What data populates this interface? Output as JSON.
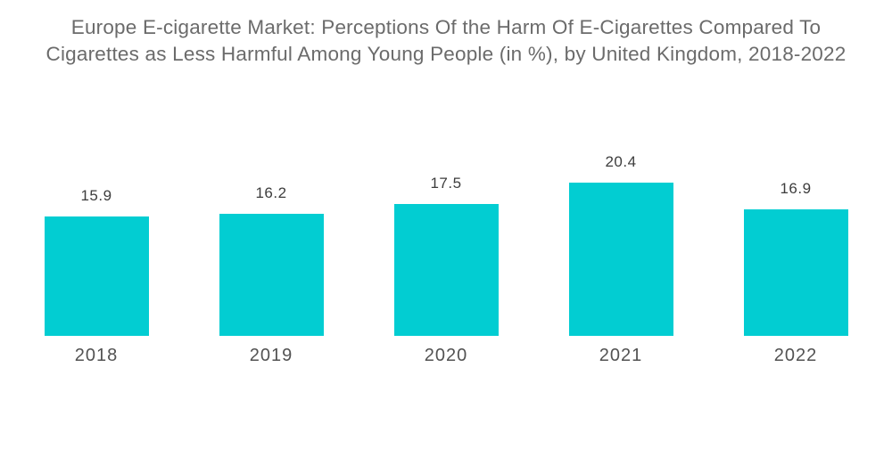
{
  "title": "Europe E-cigarette Market: Perceptions Of the Harm Of E-Cigarettes Compared To Cigarettes as Less Harmful Among Young People (in %), by United Kingdom, 2018-2022",
  "colors": {
    "background": "#ffffff",
    "bar": "#02cdd2",
    "title_text": "#6b6b6b",
    "value_text": "#3d3d3d",
    "year_text": "#525252"
  },
  "chart_data": {
    "type": "bar",
    "categories": [
      "2018",
      "2019",
      "2020",
      "2021",
      "2022"
    ],
    "values": [
      15.9,
      16.2,
      17.5,
      20.4,
      16.9
    ],
    "title": "Europe E-cigarette Market: Perceptions Of the Harm Of E-Cigarettes Compared To Cigarettes as Less Harmful Among Young People (in %), by United Kingdom, 2018-2022",
    "xlabel": "",
    "ylabel": "",
    "ylim": [
      0,
      20.4
    ],
    "grid": false,
    "legend": false,
    "data_labels": true,
    "axis_lines": false
  }
}
